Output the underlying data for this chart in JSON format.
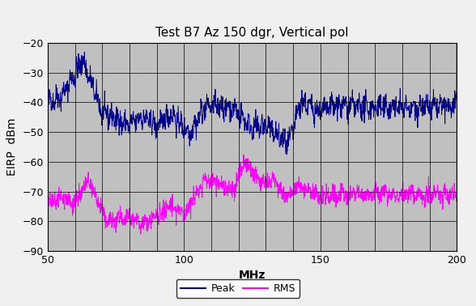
{
  "title": "Test B7 Az 150 dgr, Vertical pol",
  "xlabel": "MHz",
  "ylabel": "EIRP  dBm",
  "xlim": [
    50,
    200
  ],
  "ylim": [
    -90,
    -20
  ],
  "yticks": [
    -90,
    -80,
    -70,
    -60,
    -50,
    -40,
    -30,
    -20
  ],
  "xticks": [
    50,
    60,
    70,
    80,
    90,
    100,
    110,
    120,
    130,
    140,
    150,
    160,
    170,
    180,
    190,
    200
  ],
  "xtick_labels": [
    "50",
    "",
    "",
    "",
    "",
    "100",
    "",
    "",
    "",
    "",
    "150",
    "",
    "",
    "",
    "",
    "200"
  ],
  "background_color": "#C0C0C0",
  "grid_color": "#000000",
  "peak_color": "#00008B",
  "rms_color": "#FF00FF",
  "title_fontsize": 11,
  "axis_label_fontsize": 10,
  "tick_fontsize": 9,
  "fig_facecolor": "#F0F0F0"
}
